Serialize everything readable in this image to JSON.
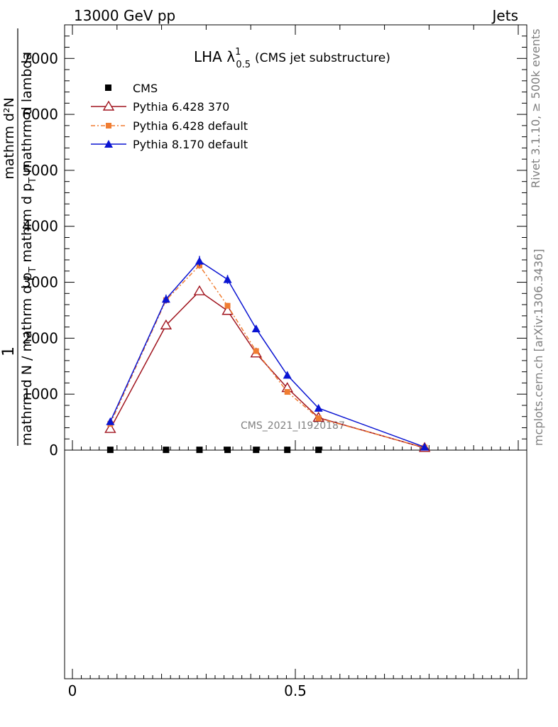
{
  "header": {
    "left": "13000 GeV pp",
    "right": "Jets"
  },
  "side": {
    "top": "Rivet 3.1.10, ≥ 500k events",
    "bottom": "mcplots.cern.ch [arXiv:1306.3436]"
  },
  "watermark": "CMS_2021_I1920187",
  "colors": {
    "cms": "#000000",
    "p6_370": "#a0141e",
    "p6_default": "#f07d32",
    "p8_default": "#0a14d2"
  },
  "chart_data": {
    "type": "line",
    "title": {
      "main": "LHA λ",
      "sup": "1",
      "sub": "0.5",
      "suffix": "(CMS jet substructure)"
    },
    "ylabel": {
      "one": "1",
      "num": "mathrm d²N",
      "den_part1": "mathrm d N / mathrm d p",
      "den_sub1": "T",
      "den_part2": " mathrm d p",
      "den_sub2": "T",
      "den_part3": " mathrm d lambda"
    },
    "xlim": [
      0,
      1
    ],
    "ylim": [
      0,
      7600
    ],
    "xticks": [
      0,
      0.5
    ],
    "xtick_labels": [
      "0",
      "0.5"
    ],
    "yticks": [
      0,
      1000,
      2000,
      3000,
      4000,
      5000,
      6000,
      7000
    ],
    "ytick_labels": [
      "0",
      "1000",
      "2000",
      "3000",
      "4000",
      "5000",
      "6000",
      "7000"
    ],
    "grid": false,
    "legend_position": "top-left",
    "series": [
      {
        "name": "CMS",
        "marker": "square",
        "x": [
          0.085,
          0.21,
          0.285,
          0.348,
          0.412,
          0.482,
          0.552
        ],
        "y": [
          5,
          5,
          5,
          5,
          5,
          5,
          5
        ]
      },
      {
        "name": "Pythia 6.428 370",
        "marker": "open-triangle",
        "x": [
          0.085,
          0.21,
          0.285,
          0.348,
          0.412,
          0.482,
          0.552,
          0.79
        ],
        "y": [
          380,
          2230,
          2840,
          2490,
          1730,
          1110,
          580,
          40
        ],
        "err": [
          30,
          40,
          50,
          50,
          40,
          40,
          30,
          10
        ]
      },
      {
        "name": "Pythia 6.428 default",
        "marker": "filled-square",
        "dash": "dashdot",
        "x": [
          0.085,
          0.21,
          0.285,
          0.348,
          0.412,
          0.482,
          0.552,
          0.79
        ],
        "y": [
          470,
          2680,
          3300,
          2580,
          1770,
          1040,
          570,
          45
        ],
        "err": [
          30,
          50,
          60,
          50,
          40,
          40,
          30,
          10
        ]
      },
      {
        "name": "Pythia 8.170 default",
        "marker": "filled-triangle",
        "x": [
          0.085,
          0.21,
          0.285,
          0.348,
          0.412,
          0.482,
          0.552,
          0.79
        ],
        "y": [
          510,
          2700,
          3380,
          3050,
          2170,
          1340,
          750,
          55
        ],
        "err": [
          30,
          80,
          90,
          80,
          60,
          50,
          30,
          10
        ]
      }
    ]
  }
}
